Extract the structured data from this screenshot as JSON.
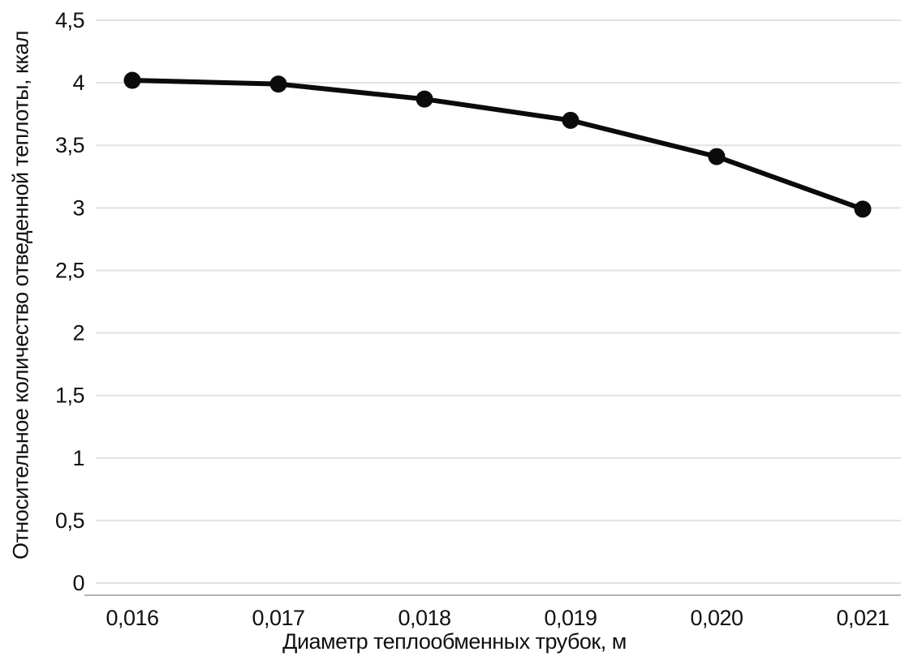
{
  "chart_data": {
    "type": "line",
    "title": "",
    "x": [
      0.016,
      0.017,
      0.018,
      0.019,
      0.02,
      0.021
    ],
    "x_tick_labels": [
      "0,016",
      "0,017",
      "0,018",
      "0,019",
      "0,020",
      "0,021"
    ],
    "values": [
      4.02,
      3.99,
      3.87,
      3.7,
      3.41,
      2.99
    ],
    "xlabel": "Диаметр теплообменных трубок, м",
    "ylabel": "Относительное количество отведенной теплоты, ккал",
    "ylim": [
      0,
      4.5
    ],
    "y_tick_step": 0.5,
    "y_tick_labels": [
      "0",
      "0,5",
      "1",
      "1,5",
      "2",
      "2,5",
      "3",
      "3,5",
      "4",
      "4,5"
    ],
    "grid": "horizontal",
    "legend": "none",
    "line_color": "#0b0b0b",
    "marker": "circle",
    "gridline_color": "#e2e2e2",
    "axis_line_color": "#b3b3b3",
    "text_color": "#111111",
    "background": "#ffffff"
  }
}
